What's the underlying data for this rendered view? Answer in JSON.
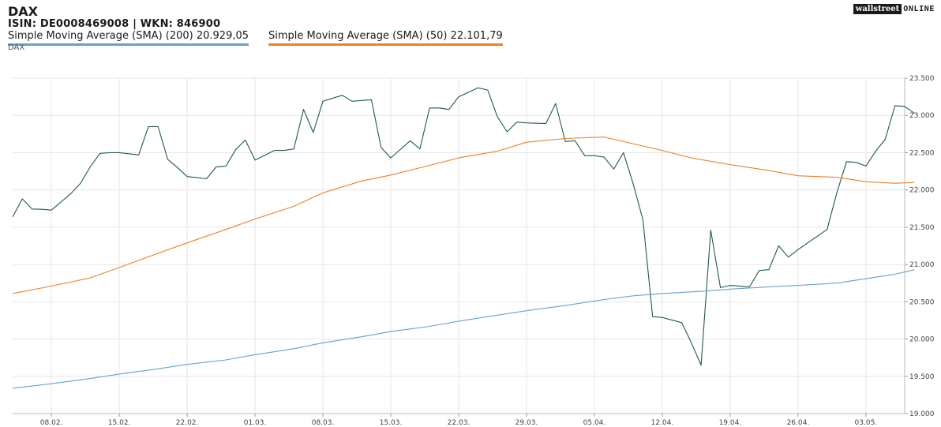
{
  "header": {
    "title": "DAX",
    "subtitle": "ISIN: DE0008469008  | WKN: 846900",
    "small_label": "DAX"
  },
  "logo": {
    "box_text": "wallstreet",
    "text": "ONLINE"
  },
  "legend": [
    {
      "label": "Simple Moving Average (SMA) (200) 20.929,05",
      "color": "#6aa2c4"
    },
    {
      "label": "Simple Moving Average (SMA) (50) 22.101,79",
      "color": "#e8822a"
    }
  ],
  "chart_data": {
    "type": "line",
    "x_tick_labels": [
      "08.02.",
      "15.02.",
      "22.02.",
      "01.03.",
      "08.03.",
      "15.03.",
      "22.03.",
      "29.03.",
      "05.04.",
      "12.04.",
      "19.04.",
      "26.04.",
      "03.05."
    ],
    "x_tick_dates": [
      "2025-02-08",
      "2025-02-15",
      "2025-02-22",
      "2025-03-01",
      "2025-03-08",
      "2025-03-15",
      "2025-03-22",
      "2025-03-29",
      "2025-04-05",
      "2025-04-12",
      "2025-04-19",
      "2025-04-26",
      "2025-05-03"
    ],
    "x_range": [
      "2025-02-04",
      "2025-05-07"
    ],
    "ylim": [
      19000,
      23500
    ],
    "y_ticks": [
      19000,
      19500,
      20000,
      20500,
      21000,
      21500,
      22000,
      22500,
      23000,
      23500
    ],
    "y_tick_labels": [
      "19.000",
      "19.500",
      "20.000",
      "20.500",
      "21.000",
      "21.500",
      "22.000",
      "22.500",
      "23.000",
      "23.500"
    ],
    "y_axis_position": "right",
    "grid": true,
    "series": [
      {
        "name": "DAX",
        "color": "#1f5c45",
        "points": [
          [
            "2025-02-04",
            21640
          ],
          [
            "2025-02-05",
            21880
          ],
          [
            "2025-02-06",
            21745
          ],
          [
            "2025-02-07",
            21740
          ],
          [
            "2025-02-08",
            21730
          ],
          [
            "2025-02-10",
            21950
          ],
          [
            "2025-02-11",
            22090
          ],
          [
            "2025-02-12",
            22310
          ],
          [
            "2025-02-13",
            22490
          ],
          [
            "2025-02-14",
            22500
          ],
          [
            "2025-02-15",
            22500
          ],
          [
            "2025-02-17",
            22470
          ],
          [
            "2025-02-18",
            22850
          ],
          [
            "2025-02-19",
            22850
          ],
          [
            "2025-02-20",
            22410
          ],
          [
            "2025-02-21",
            22300
          ],
          [
            "2025-02-22",
            22180
          ],
          [
            "2025-02-24",
            22150
          ],
          [
            "2025-02-25",
            22310
          ],
          [
            "2025-02-26",
            22320
          ],
          [
            "2025-02-27",
            22540
          ],
          [
            "2025-02-28",
            22670
          ],
          [
            "2025-03-01",
            22400
          ],
          [
            "2025-03-03",
            22530
          ],
          [
            "2025-03-04",
            22530
          ],
          [
            "2025-03-05",
            22550
          ],
          [
            "2025-03-06",
            23080
          ],
          [
            "2025-03-07",
            22770
          ],
          [
            "2025-03-08",
            23190
          ],
          [
            "2025-03-10",
            23270
          ],
          [
            "2025-03-11",
            23190
          ],
          [
            "2025-03-12",
            23200
          ],
          [
            "2025-03-13",
            23210
          ],
          [
            "2025-03-14",
            22570
          ],
          [
            "2025-03-15",
            22430
          ],
          [
            "2025-03-17",
            22660
          ],
          [
            "2025-03-18",
            22550
          ],
          [
            "2025-03-19",
            23100
          ],
          [
            "2025-03-20",
            23100
          ],
          [
            "2025-03-21",
            23080
          ],
          [
            "2025-03-22",
            23250
          ],
          [
            "2025-03-24",
            23370
          ],
          [
            "2025-03-25",
            23340
          ],
          [
            "2025-03-26",
            22980
          ],
          [
            "2025-03-27",
            22780
          ],
          [
            "2025-03-28",
            22910
          ],
          [
            "2025-03-29",
            22900
          ],
          [
            "2025-03-31",
            22890
          ],
          [
            "2025-04-01",
            23160
          ],
          [
            "2025-04-02",
            22650
          ],
          [
            "2025-04-03",
            22660
          ],
          [
            "2025-04-04",
            22460
          ],
          [
            "2025-04-05",
            22460
          ],
          [
            "2025-04-06",
            22440
          ],
          [
            "2025-04-07",
            22280
          ],
          [
            "2025-04-08",
            22500
          ],
          [
            "2025-04-09",
            22080
          ],
          [
            "2025-04-10",
            21600
          ],
          [
            "2025-04-11",
            20300
          ],
          [
            "2025-04-12",
            20290
          ],
          [
            "2025-04-14",
            20220
          ],
          [
            "2025-04-15",
            19950
          ],
          [
            "2025-04-16",
            19650
          ],
          [
            "2025-04-17",
            21460
          ],
          [
            "2025-04-18",
            20690
          ],
          [
            "2025-04-19",
            20720
          ],
          [
            "2025-04-21",
            20700
          ],
          [
            "2025-04-22",
            20920
          ],
          [
            "2025-04-23",
            20930
          ],
          [
            "2025-04-24",
            21250
          ],
          [
            "2025-04-25",
            21100
          ],
          [
            "2025-04-26",
            21200
          ],
          [
            "2025-04-29",
            21470
          ],
          [
            "2025-04-30",
            21960
          ],
          [
            "2025-05-01",
            22380
          ],
          [
            "2025-05-02",
            22370
          ],
          [
            "2025-05-03",
            22320
          ],
          [
            "2025-05-04",
            22520
          ],
          [
            "2025-05-05",
            22680
          ],
          [
            "2025-05-06",
            23130
          ],
          [
            "2025-05-07",
            23120
          ],
          [
            "2025-05-08",
            23030
          ]
        ]
      },
      {
        "name": "Simple Moving Average (SMA) (50)",
        "color": "#e8822a",
        "points": [
          [
            "2025-02-04",
            20610
          ],
          [
            "2025-02-08",
            20710
          ],
          [
            "2025-02-12",
            20820
          ],
          [
            "2025-02-15",
            20960
          ],
          [
            "2025-02-19",
            21150
          ],
          [
            "2025-02-22",
            21290
          ],
          [
            "2025-02-26",
            21470
          ],
          [
            "2025-03-01",
            21610
          ],
          [
            "2025-03-05",
            21780
          ],
          [
            "2025-03-08",
            21960
          ],
          [
            "2025-03-12",
            22120
          ],
          [
            "2025-03-15",
            22200
          ],
          [
            "2025-03-19",
            22330
          ],
          [
            "2025-03-22",
            22430
          ],
          [
            "2025-03-26",
            22520
          ],
          [
            "2025-03-29",
            22640
          ],
          [
            "2025-04-02",
            22690
          ],
          [
            "2025-04-06",
            22710
          ],
          [
            "2025-04-09",
            22620
          ],
          [
            "2025-04-12",
            22530
          ],
          [
            "2025-04-15",
            22430
          ],
          [
            "2025-04-19",
            22340
          ],
          [
            "2025-04-23",
            22260
          ],
          [
            "2025-04-26",
            22190
          ],
          [
            "2025-04-30",
            22170
          ],
          [
            "2025-05-03",
            22110
          ],
          [
            "2025-05-06",
            22090
          ],
          [
            "2025-05-08",
            22100
          ]
        ]
      },
      {
        "name": "Simple Moving Average (SMA) (200)",
        "color": "#6aa2c4",
        "points": [
          [
            "2025-02-04",
            19340
          ],
          [
            "2025-02-08",
            19400
          ],
          [
            "2025-02-12",
            19470
          ],
          [
            "2025-02-15",
            19530
          ],
          [
            "2025-02-19",
            19600
          ],
          [
            "2025-02-22",
            19660
          ],
          [
            "2025-02-26",
            19720
          ],
          [
            "2025-03-01",
            19790
          ],
          [
            "2025-03-05",
            19870
          ],
          [
            "2025-03-08",
            19950
          ],
          [
            "2025-03-12",
            20030
          ],
          [
            "2025-03-15",
            20100
          ],
          [
            "2025-03-19",
            20170
          ],
          [
            "2025-03-22",
            20240
          ],
          [
            "2025-03-26",
            20320
          ],
          [
            "2025-03-29",
            20380
          ],
          [
            "2025-04-02",
            20450
          ],
          [
            "2025-04-06",
            20530
          ],
          [
            "2025-04-09",
            20580
          ],
          [
            "2025-04-12",
            20610
          ],
          [
            "2025-04-16",
            20640
          ],
          [
            "2025-04-19",
            20670
          ],
          [
            "2025-04-23",
            20700
          ],
          [
            "2025-04-26",
            20720
          ],
          [
            "2025-04-30",
            20750
          ],
          [
            "2025-05-03",
            20810
          ],
          [
            "2025-05-06",
            20870
          ],
          [
            "2025-05-08",
            20929.05
          ]
        ]
      }
    ]
  }
}
